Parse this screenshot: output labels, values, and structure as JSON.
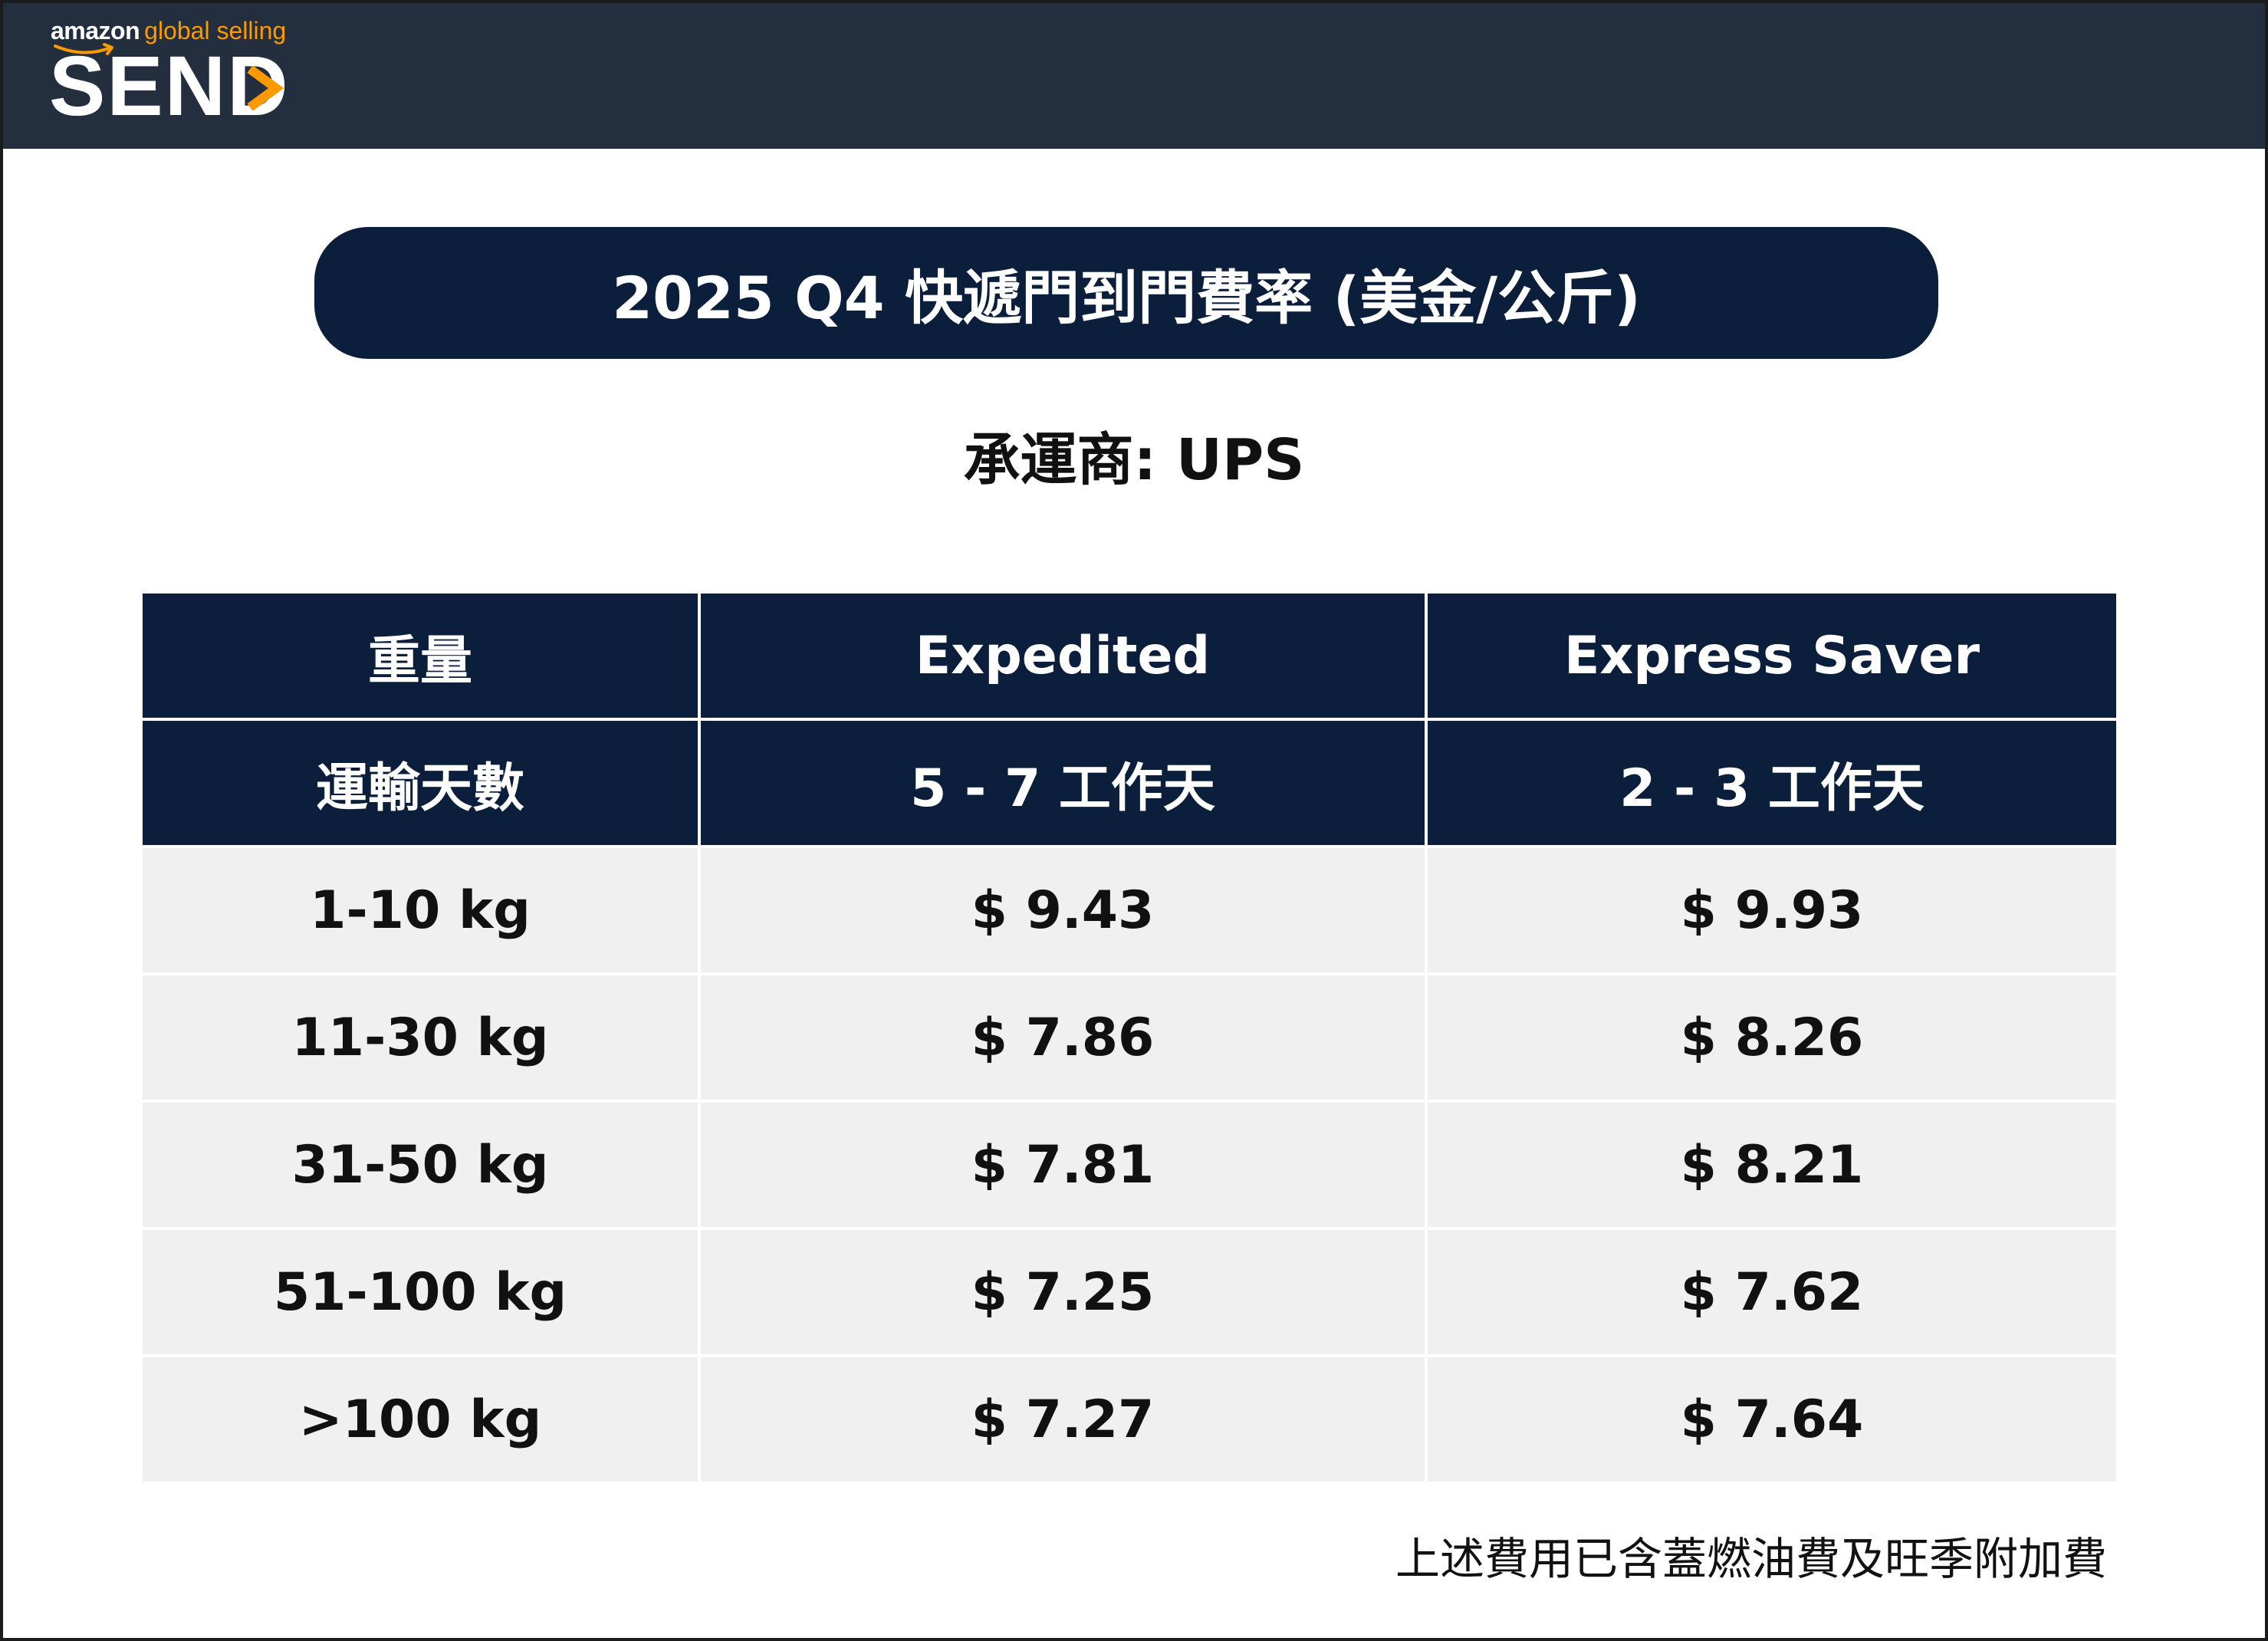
{
  "brand": {
    "small_amazon": "amazon",
    "small_rest": "global selling",
    "big_prefix": "SEN",
    "big_last": "D",
    "accent_color": "#ff9900",
    "header_color": "#232f3e"
  },
  "title": "2025 Q4 快遞門到門費率 (美金/公斤)",
  "carrier": "承運商: UPS",
  "table": {
    "header_rows": [
      [
        "重量",
        "Expedited",
        "Express Saver"
      ],
      [
        "運輸天數",
        "5 - 7 工作天",
        "2 - 3 工作天"
      ]
    ],
    "rows": [
      [
        "1-10 kg",
        "$ 9.43",
        "$ 9.93"
      ],
      [
        "11-30 kg",
        "$ 7.86",
        "$ 8.26"
      ],
      [
        "31-50 kg",
        "$ 7.81",
        "$ 8.21"
      ],
      [
        "51-100 kg",
        "$ 7.25",
        "$ 7.62"
      ],
      [
        ">100 kg",
        "$ 7.27",
        "$ 7.64"
      ]
    ],
    "header_color": "#0b1e3b",
    "row_color": "#f0f0f0"
  },
  "footnote": "上述費用已含蓋燃油費及旺季附加費"
}
